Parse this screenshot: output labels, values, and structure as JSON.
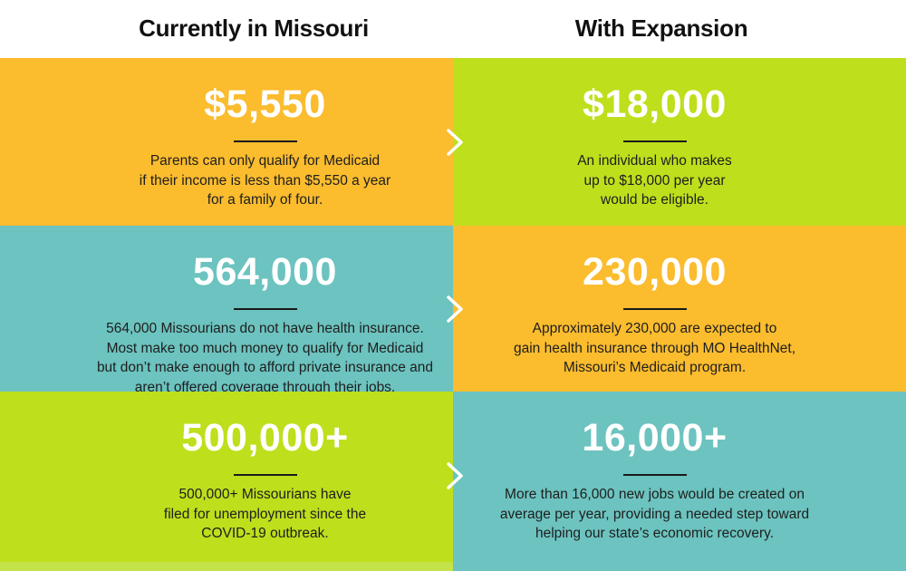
{
  "headers": {
    "left": "Currently in Missouri",
    "right": "With Expansion"
  },
  "rows": [
    {
      "current": {
        "stat": "$5,550",
        "text": "Parents can only qualify for Medicaid\nif their income is less than $5,550 a year\nfor a family of four."
      },
      "expansion": {
        "stat": "$18,000",
        "text": "An individual who makes\nup to $18,000 per year\nwould be eligible."
      }
    },
    {
      "current": {
        "stat": "564,000",
        "text": "564,000 Missourians do not have health insurance.\nMost make too much money to qualify for Medicaid\nbut don’t make enough to afford private insurance and\naren’t offered coverage through their jobs."
      },
      "expansion": {
        "stat": "230,000",
        "text": "Approximately 230,000 are expected to\ngain health insurance through MO HealthNet,\nMissouri’s Medicaid program."
      }
    },
    {
      "current": {
        "stat": "500,000+",
        "text": "500,000+ Missourians have\nfiled for unemployment since the\nCOVID-19 outbreak."
      },
      "expansion": {
        "stat": "16,000+",
        "text": "More than 16,000 new jobs would be created on\naverage per year, providing a needed step toward\nhelping our state’s economic recovery."
      }
    }
  ],
  "colors": {
    "orange": "#fbbc2e",
    "green": "#bedf1c",
    "teal": "#6cc3bf"
  },
  "icons": {
    "arrow": "chevron-right-icon"
  }
}
